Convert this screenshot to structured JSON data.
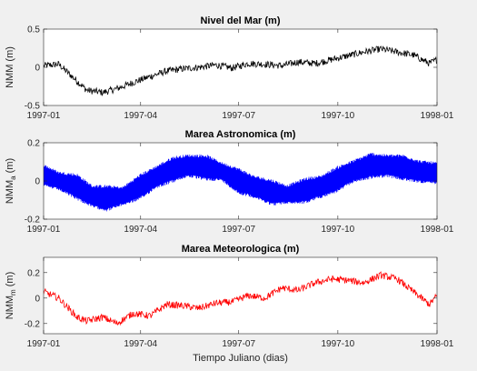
{
  "chart_data": [
    {
      "type": "line",
      "title": "Nivel del Mar (m)",
      "ylabel": "NMM (m)",
      "ylabel_main": "NMM",
      "ylabel_sub": "",
      "ylabel_unit": "(m)",
      "xlabel": "",
      "xlim": [
        "1997-01",
        "1998-01"
      ],
      "ylim": [
        -0.5,
        0.5
      ],
      "yticks": [
        "0.5",
        "0",
        "-0.5"
      ],
      "xticks": [
        "1997-01",
        "1997-04",
        "1997-07",
        "1997-10",
        "1998-01"
      ],
      "series": [
        {
          "color": "#000000",
          "style": "noisy",
          "x": [
            "1997-01-01",
            "1997-01-15",
            "1997-02-01",
            "1997-02-10",
            "1997-02-25",
            "1997-03-10",
            "1997-03-25",
            "1997-04-10",
            "1997-04-25",
            "1997-05-10",
            "1997-05-25",
            "1997-06-10",
            "1997-06-25",
            "1997-07-10",
            "1997-07-25",
            "1997-08-10",
            "1997-08-25",
            "1997-09-10",
            "1997-09-25",
            "1997-10-10",
            "1997-10-25",
            "1997-11-10",
            "1997-11-25",
            "1997-12-10",
            "1997-12-25",
            "1998-01-01"
          ],
          "y": [
            0.02,
            0.04,
            -0.18,
            -0.3,
            -0.33,
            -0.28,
            -0.2,
            -0.12,
            -0.05,
            -0.02,
            0.0,
            0.03,
            -0.01,
            0.05,
            0.04,
            0.02,
            0.07,
            0.05,
            0.1,
            0.15,
            0.2,
            0.24,
            0.2,
            0.16,
            0.05,
            0.1
          ]
        }
      ]
    },
    {
      "type": "line",
      "title": "Marea Astronomica (m)",
      "ylabel": "NMM_a (m)",
      "ylabel_main": "NMM",
      "ylabel_sub": "a",
      "ylabel_unit": "(m)",
      "xlabel": "",
      "xlim": [
        "1997-01",
        "1998-01"
      ],
      "ylim": [
        -0.2,
        0.2
      ],
      "yticks": [
        "0.2",
        "0",
        "-0.2"
      ],
      "xticks": [
        "1997-01",
        "1997-04",
        "1997-07",
        "1997-10",
        "1998-01"
      ],
      "series": [
        {
          "color": "#0000ff",
          "style": "band",
          "x": [
            "1997-01-01",
            "1997-01-15",
            "1997-02-01",
            "1997-02-15",
            "1997-03-01",
            "1997-03-15",
            "1997-04-01",
            "1997-04-15",
            "1997-05-01",
            "1997-05-15",
            "1997-06-01",
            "1997-06-15",
            "1997-07-01",
            "1997-07-15",
            "1997-08-01",
            "1997-08-15",
            "1997-09-01",
            "1997-09-15",
            "1997-10-01",
            "1997-10-15",
            "1997-11-01",
            "1997-11-15",
            "1997-12-01",
            "1997-12-15",
            "1998-01-01"
          ],
          "y": [
            0.03,
            0.0,
            -0.03,
            -0.08,
            -0.09,
            -0.08,
            -0.03,
            0.02,
            0.06,
            0.08,
            0.07,
            0.05,
            0.0,
            -0.03,
            -0.06,
            -0.07,
            -0.05,
            -0.03,
            0.01,
            0.05,
            0.08,
            0.08,
            0.07,
            0.05,
            0.04
          ],
          "amplitude": [
            0.06,
            0.05,
            0.07,
            0.06,
            0.07,
            0.05,
            0.07,
            0.06,
            0.07,
            0.06,
            0.07,
            0.05,
            0.07,
            0.06,
            0.07,
            0.05,
            0.07,
            0.06,
            0.07,
            0.06,
            0.07,
            0.06,
            0.07,
            0.06,
            0.06
          ]
        }
      ]
    },
    {
      "type": "line",
      "title": "Marea Meteorologica (m)",
      "ylabel": "NMM_m (m)",
      "ylabel_main": "NMM",
      "ylabel_sub": "m",
      "ylabel_unit": "(m)",
      "xlabel": "Tiempo Juliano (dias)",
      "xlim": [
        "1997-01",
        "1998-01"
      ],
      "ylim": [
        -0.28,
        0.32
      ],
      "yticks": [
        "0.2",
        "0",
        "-0.2"
      ],
      "xticks": [
        "1997-01",
        "1997-04",
        "1997-07",
        "1997-10",
        "1998-01"
      ],
      "series": [
        {
          "color": "#ff0000",
          "style": "noisy",
          "x": [
            "1997-01-01",
            "1997-01-15",
            "1997-02-01",
            "1997-02-10",
            "1997-02-25",
            "1997-03-10",
            "1997-03-25",
            "1997-04-10",
            "1997-04-25",
            "1997-05-10",
            "1997-05-25",
            "1997-06-10",
            "1997-06-25",
            "1997-07-10",
            "1997-07-25",
            "1997-08-10",
            "1997-08-25",
            "1997-09-10",
            "1997-09-25",
            "1997-10-10",
            "1997-10-25",
            "1997-11-10",
            "1997-11-25",
            "1997-12-10",
            "1997-12-25",
            "1998-01-01"
          ],
          "y": [
            0.05,
            0.0,
            -0.15,
            -0.18,
            -0.15,
            -0.2,
            -0.12,
            -0.14,
            -0.05,
            -0.06,
            -0.08,
            -0.04,
            -0.03,
            0.02,
            0.0,
            0.08,
            0.06,
            0.12,
            0.15,
            0.14,
            0.12,
            0.18,
            0.15,
            0.05,
            -0.05,
            0.02
          ]
        }
      ]
    }
  ]
}
